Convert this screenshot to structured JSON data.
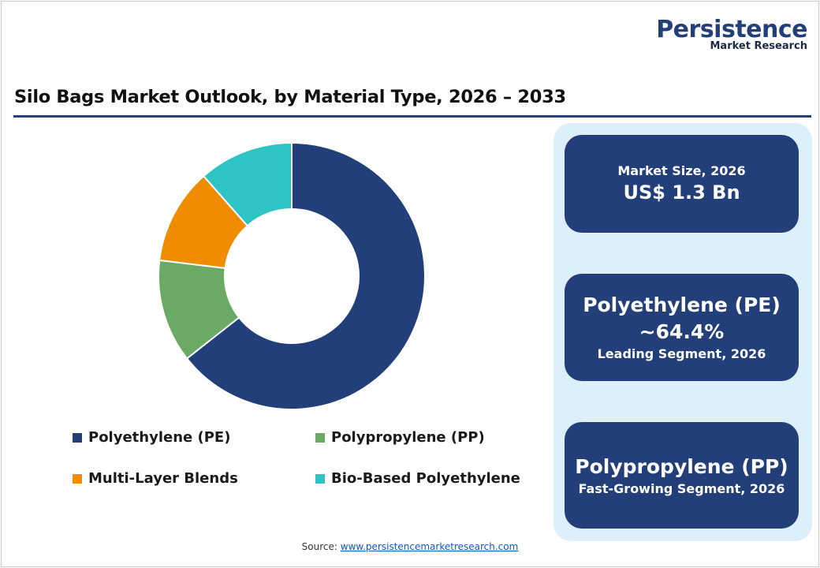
{
  "logo": {
    "main": "Persistence",
    "sub": "Market Research"
  },
  "title": "Silo Bags Market Outlook, by Material Type, 2026 – 2033",
  "chart_data": {
    "type": "pie",
    "donut": true,
    "categories": [
      "Polyethylene (PE)",
      "Polypropylene (PP)",
      "Multi-Layer Blends",
      "Bio-Based Polyethylene"
    ],
    "values": [
      64.4,
      12.5,
      11.6,
      11.5
    ],
    "colors": [
      "#223f7a",
      "#6aaa64",
      "#f08c00",
      "#2ec4c4"
    ],
    "legend_position": "bottom"
  },
  "cards": {
    "market_size": {
      "label": "Market Size, 2026",
      "value": "US$ 1.3 Bn"
    },
    "leading": {
      "name": "Polyethylene (PE)",
      "share": "~64.4%",
      "note": "Leading Segment, 2026"
    },
    "fastest": {
      "name": "Polypropylene (PP)",
      "note": "Fast-Growing Segment, 2026"
    }
  },
  "source": {
    "label": "Source:",
    "link": "www.persistencemarketresearch.com"
  }
}
